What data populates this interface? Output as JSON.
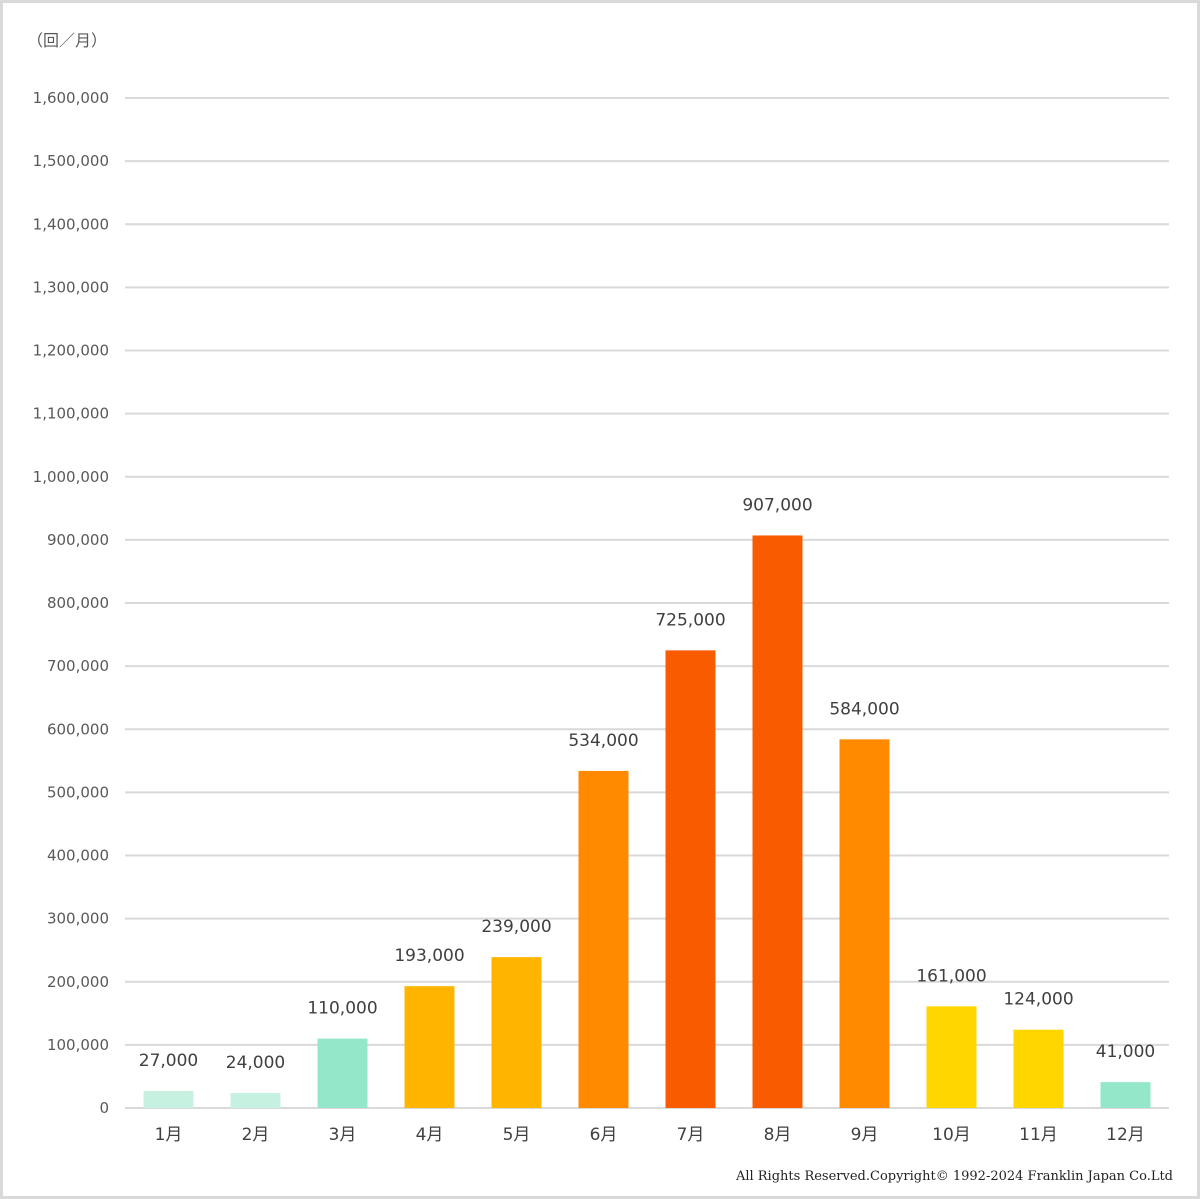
{
  "chart_data": {
    "type": "bar",
    "unit_label": "（回／月）",
    "categories": [
      "1月",
      "2月",
      "3月",
      "4月",
      "5月",
      "6月",
      "7月",
      "8月",
      "9月",
      "10月",
      "11月",
      "12月"
    ],
    "values": [
      27000,
      24000,
      110000,
      193000,
      239000,
      534000,
      725000,
      907000,
      584000,
      161000,
      124000,
      41000
    ],
    "data_labels": [
      "27,000",
      "24,000",
      "110,000",
      "193,000",
      "239,000",
      "534,000",
      "725,000",
      "907,000",
      "584,000",
      "161,000",
      "124,000",
      "41,000"
    ],
    "bar_colors": [
      "#c6f1e1",
      "#c6f1e1",
      "#94e8c9",
      "#ffb500",
      "#ffb500",
      "#ff8a00",
      "#f95c00",
      "#f95c00",
      "#ff8a00",
      "#ffd600",
      "#ffd600",
      "#94e8c9"
    ],
    "ylim": [
      0,
      1600000
    ],
    "y_ticks": [
      0,
      100000,
      200000,
      300000,
      400000,
      500000,
      600000,
      700000,
      800000,
      900000,
      1000000,
      1100000,
      1200000,
      1300000,
      1400000,
      1500000,
      1600000
    ],
    "y_tick_labels": [
      "0",
      "100,000",
      "200,000",
      "300,000",
      "400,000",
      "500,000",
      "600,000",
      "700,000",
      "800,000",
      "900,000",
      "1,000,000",
      "1,100,000",
      "1,200,000",
      "1,300,000",
      "1,400,000",
      "1,500,000",
      "1,600,000"
    ],
    "grid": true,
    "gridline_color": "#d9d9d9",
    "legend": "none"
  },
  "footer": {
    "copyright": "All  Rights  Reserved.Copyright©  1992-2024 Franklin  Japan  Co.Ltd"
  }
}
